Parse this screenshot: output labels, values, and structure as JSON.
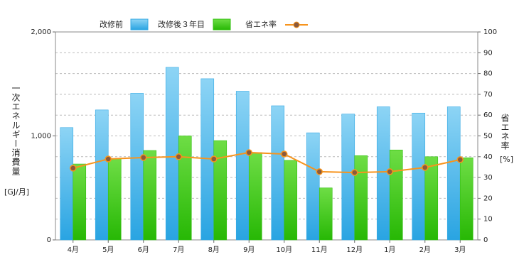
{
  "chart_data": {
    "type": "bar_line",
    "y_label": "一次エネルギー消費量",
    "y_unit": "[GJ/月]",
    "y2_label": "省エネ率",
    "y2_unit": "[%]",
    "categories": [
      "4月",
      "5月",
      "6月",
      "7月",
      "8月",
      "9月",
      "10月",
      "11月",
      "12月",
      "1月",
      "2月",
      "3月"
    ],
    "series": [
      {
        "name": "改修前",
        "type": "bar",
        "color": "#35a9e3",
        "values": [
          1080,
          1250,
          1410,
          1660,
          1550,
          1430,
          1290,
          1030,
          1210,
          1280,
          1220,
          1280
        ]
      },
      {
        "name": "改修後３年目",
        "type": "bar",
        "color": "#33c011",
        "values": [
          730,
          780,
          860,
          1000,
          955,
          840,
          765,
          500,
          810,
          865,
          800,
          790
        ]
      },
      {
        "name": "省エネ率",
        "type": "line",
        "axis": "y2",
        "color": "#f7941d",
        "marker_color": "#8b5a3c",
        "values": [
          34.5,
          38.9,
          39.6,
          40,
          38.9,
          42,
          41.3,
          32.8,
          32.4,
          32.8,
          34.8,
          38.6
        ]
      }
    ],
    "ylim": [
      0,
      2000
    ],
    "yticks": [
      0,
      {
        "value": 1000,
        "label": "1,000"
      },
      {
        "value": 2000,
        "label": "2,000"
      }
    ],
    "y2lim": [
      0,
      100
    ],
    "y2ticks": [
      0,
      10,
      20,
      30,
      40,
      50,
      60,
      70,
      80,
      90,
      100
    ],
    "grid": true
  }
}
